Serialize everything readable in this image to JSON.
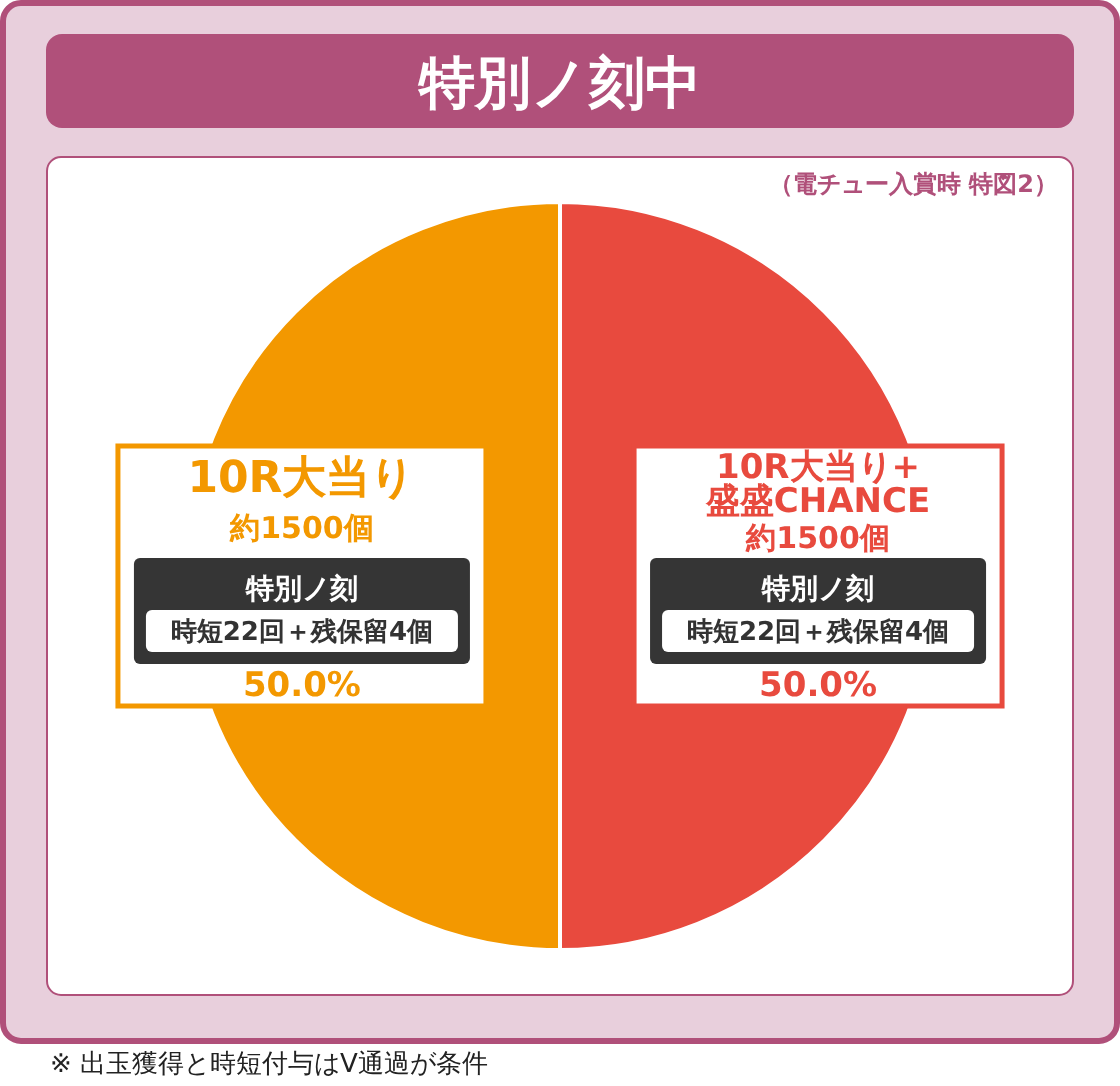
{
  "chart_data": {
    "type": "pie",
    "title": "特別ノ刻中",
    "categories": [
      "10R大当り",
      "10R大当り+\n盛盛CHANCE"
    ],
    "values": [
      50,
      50
    ],
    "colors": [
      "#f39800",
      "#e84a3e"
    ],
    "value_labels": [
      "50.0%",
      "50.0%"
    ],
    "annotations": [
      "（電チュー入賞時 特図2）",
      "約1500個",
      "特別ノ刻",
      "時短22回＋残保留4個",
      "約1500個",
      "特別ノ刻",
      "時短22回＋残保留4個",
      "※ 出玉獲得と時短付与はV通過が条件"
    ]
  }
}
